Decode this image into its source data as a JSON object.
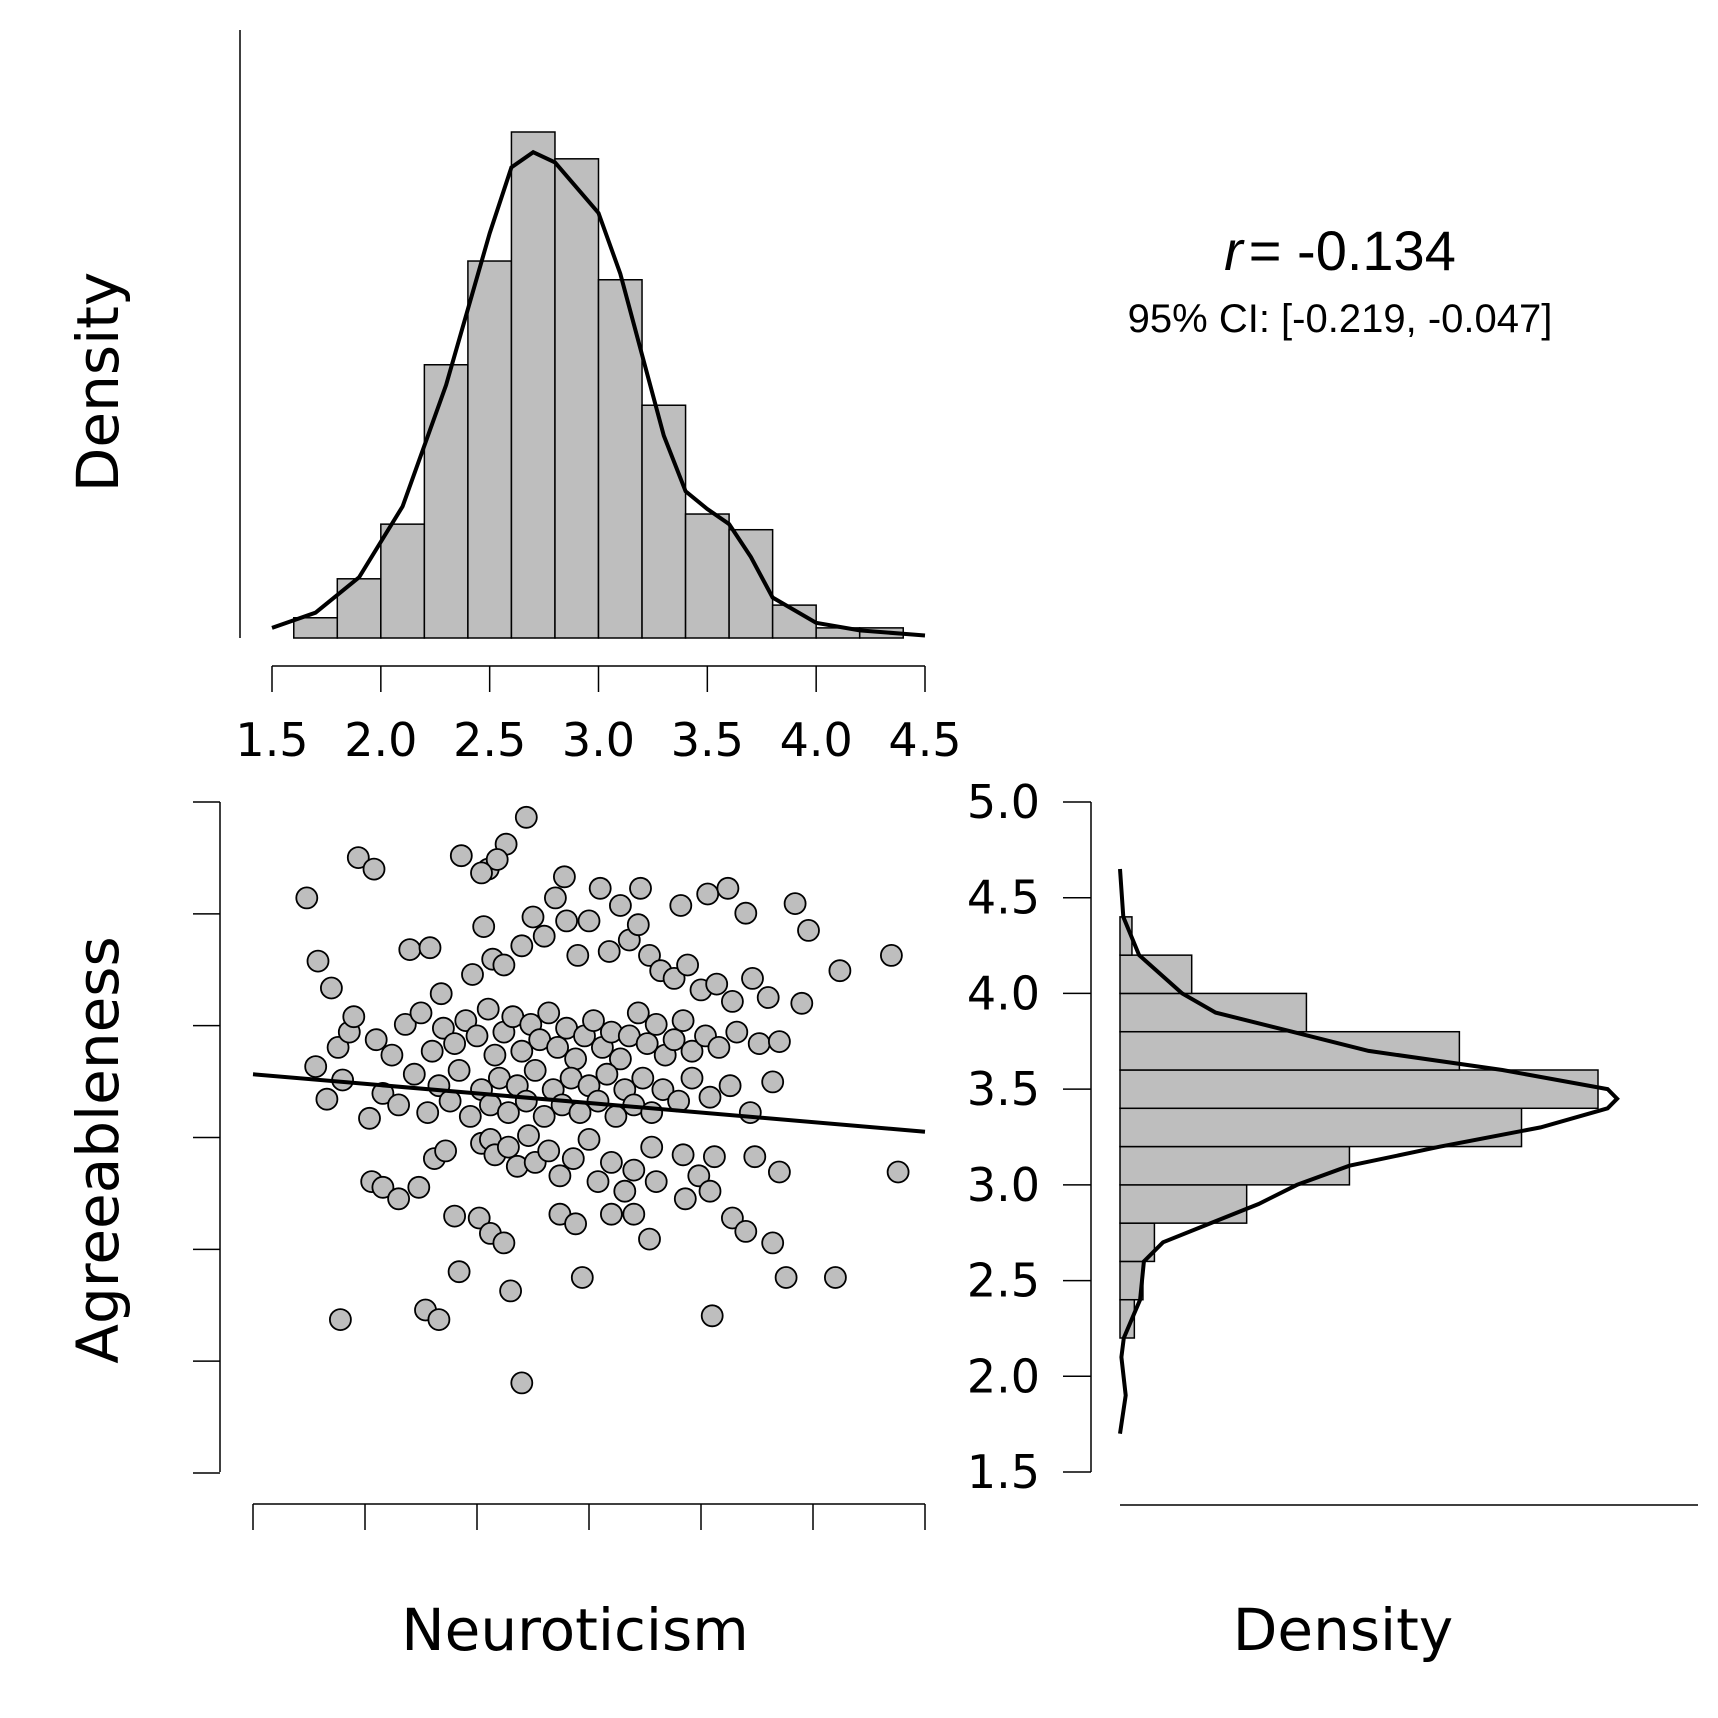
{
  "stat": {
    "r_symbol": "r",
    "r_value": "= -0.134",
    "ci_text": "95% CI: [-0.219, -0.047]"
  },
  "axes": {
    "top_ylabel": "Density",
    "scatter_ylabel": "Agreeableness",
    "scatter_xlabel": "Neuroticism",
    "right_xlabel": "Density"
  },
  "chart_data": [
    {
      "type": "bar",
      "panel": "top-histogram",
      "xlabel": "",
      "ylabel": "Density",
      "xlim": [
        1.5,
        4.5
      ],
      "xticks": [
        "1.5",
        "2.0",
        "2.5",
        "3.0",
        "3.5",
        "4.0",
        "4.5"
      ],
      "bin_edges": [
        1.6,
        1.8,
        2.0,
        2.2,
        2.4,
        2.6,
        2.8,
        3.0,
        3.2,
        3.4,
        3.6,
        3.8,
        4.0,
        4.2,
        4.4
      ],
      "values": [
        0.04,
        0.117,
        0.225,
        0.54,
        0.745,
        1.0,
        0.947,
        0.708,
        0.46,
        0.245,
        0.214,
        0.065,
        0.02,
        0.02
      ],
      "density_curve": [
        [
          1.5,
          0.02
        ],
        [
          1.7,
          0.05
        ],
        [
          1.9,
          0.12
        ],
        [
          2.1,
          0.26
        ],
        [
          2.3,
          0.5
        ],
        [
          2.5,
          0.8
        ],
        [
          2.6,
          0.93
        ],
        [
          2.7,
          0.96
        ],
        [
          2.8,
          0.94
        ],
        [
          3.0,
          0.84
        ],
        [
          3.1,
          0.72
        ],
        [
          3.2,
          0.56
        ],
        [
          3.3,
          0.4
        ],
        [
          3.4,
          0.29
        ],
        [
          3.5,
          0.255
        ],
        [
          3.6,
          0.225
        ],
        [
          3.7,
          0.16
        ],
        [
          3.8,
          0.08
        ],
        [
          4.0,
          0.03
        ],
        [
          4.2,
          0.015
        ],
        [
          4.5,
          0.005
        ]
      ]
    },
    {
      "type": "scatter",
      "panel": "scatter",
      "xlabel": "Neuroticism",
      "ylabel": "Agreeableness",
      "xlim": [
        1.5,
        4.5
      ],
      "ylim": [
        1.5,
        5.0
      ],
      "fit_line": [
        [
          1.5,
          3.58
        ],
        [
          4.5,
          3.28
        ]
      ],
      "points": [
        [
          2.72,
          4.92
        ],
        [
          2.63,
          4.78
        ],
        [
          2.55,
          4.65
        ],
        [
          2.43,
          4.72
        ],
        [
          2.59,
          4.7
        ],
        [
          2.89,
          4.61
        ],
        [
          1.97,
          4.71
        ],
        [
          2.04,
          4.65
        ],
        [
          2.52,
          4.63
        ],
        [
          3.23,
          4.55
        ],
        [
          3.41,
          4.46
        ],
        [
          3.53,
          4.52
        ],
        [
          3.62,
          4.55
        ],
        [
          3.7,
          4.42
        ],
        [
          3.92,
          4.47
        ],
        [
          1.74,
          4.5
        ],
        [
          3.98,
          4.33
        ],
        [
          1.79,
          4.17
        ],
        [
          1.85,
          4.03
        ],
        [
          2.2,
          4.23
        ],
        [
          2.29,
          4.24
        ],
        [
          2.34,
          4.0
        ],
        [
          2.48,
          4.1
        ],
        [
          2.53,
          4.35
        ],
        [
          2.57,
          4.18
        ],
        [
          2.62,
          4.15
        ],
        [
          2.7,
          4.25
        ],
        [
          2.75,
          4.4
        ],
        [
          2.8,
          4.3
        ],
        [
          2.85,
          4.5
        ],
        [
          2.9,
          4.38
        ],
        [
          2.95,
          4.2
        ],
        [
          3.0,
          4.38
        ],
        [
          3.05,
          4.55
        ],
        [
          3.09,
          4.22
        ],
        [
          3.14,
          4.46
        ],
        [
          3.18,
          4.28
        ],
        [
          3.22,
          4.36
        ],
        [
          3.27,
          4.2
        ],
        [
          3.32,
          4.12
        ],
        [
          3.38,
          4.08
        ],
        [
          3.44,
          4.15
        ],
        [
          3.5,
          4.02
        ],
        [
          3.57,
          4.05
        ],
        [
          3.64,
          3.96
        ],
        [
          3.73,
          4.08
        ],
        [
          3.8,
          3.98
        ],
        [
          3.95,
          3.95
        ],
        [
          4.12,
          4.12
        ],
        [
          4.35,
          4.2
        ],
        [
          1.88,
          3.72
        ],
        [
          1.93,
          3.8
        ],
        [
          1.95,
          3.88
        ],
        [
          2.05,
          3.76
        ],
        [
          2.12,
          3.68
        ],
        [
          2.18,
          3.84
        ],
        [
          2.25,
          3.9
        ],
        [
          2.3,
          3.7
        ],
        [
          2.35,
          3.82
        ],
        [
          2.4,
          3.74
        ],
        [
          2.45,
          3.86
        ],
        [
          2.5,
          3.78
        ],
        [
          2.55,
          3.92
        ],
        [
          2.58,
          3.68
        ],
        [
          2.62,
          3.8
        ],
        [
          2.66,
          3.88
        ],
        [
          2.7,
          3.7
        ],
        [
          2.74,
          3.84
        ],
        [
          2.78,
          3.76
        ],
        [
          2.82,
          3.9
        ],
        [
          2.86,
          3.72
        ],
        [
          2.9,
          3.82
        ],
        [
          2.94,
          3.66
        ],
        [
          2.98,
          3.78
        ],
        [
          3.02,
          3.86
        ],
        [
          3.06,
          3.72
        ],
        [
          3.1,
          3.8
        ],
        [
          3.14,
          3.66
        ],
        [
          3.18,
          3.78
        ],
        [
          3.22,
          3.9
        ],
        [
          3.26,
          3.74
        ],
        [
          3.3,
          3.84
        ],
        [
          3.34,
          3.68
        ],
        [
          3.38,
          3.76
        ],
        [
          3.42,
          3.86
        ],
        [
          3.46,
          3.7
        ],
        [
          3.52,
          3.78
        ],
        [
          3.58,
          3.72
        ],
        [
          3.66,
          3.8
        ],
        [
          3.76,
          3.74
        ],
        [
          3.85,
          3.75
        ],
        [
          1.78,
          3.62
        ],
        [
          1.83,
          3.45
        ],
        [
          1.9,
          3.55
        ],
        [
          2.02,
          3.35
        ],
        [
          2.08,
          3.48
        ],
        [
          2.15,
          3.42
        ],
        [
          2.22,
          3.58
        ],
        [
          2.28,
          3.38
        ],
        [
          2.33,
          3.52
        ],
        [
          2.38,
          3.44
        ],
        [
          2.42,
          3.6
        ],
        [
          2.47,
          3.36
        ],
        [
          2.52,
          3.5
        ],
        [
          2.56,
          3.42
        ],
        [
          2.6,
          3.56
        ],
        [
          2.64,
          3.38
        ],
        [
          2.68,
          3.52
        ],
        [
          2.72,
          3.44
        ],
        [
          2.76,
          3.6
        ],
        [
          2.8,
          3.36
        ],
        [
          2.84,
          3.5
        ],
        [
          2.88,
          3.42
        ],
        [
          2.92,
          3.56
        ],
        [
          2.96,
          3.38
        ],
        [
          3.0,
          3.52
        ],
        [
          3.04,
          3.44
        ],
        [
          3.08,
          3.58
        ],
        [
          3.12,
          3.36
        ],
        [
          3.16,
          3.5
        ],
        [
          3.2,
          3.42
        ],
        [
          3.24,
          3.56
        ],
        [
          3.28,
          3.38
        ],
        [
          3.33,
          3.5
        ],
        [
          3.4,
          3.44
        ],
        [
          3.46,
          3.56
        ],
        [
          3.54,
          3.46
        ],
        [
          3.63,
          3.52
        ],
        [
          3.72,
          3.38
        ],
        [
          3.82,
          3.54
        ],
        [
          2.31,
          3.14
        ],
        [
          2.36,
          3.18
        ],
        [
          2.52,
          3.22
        ],
        [
          2.56,
          3.24
        ],
        [
          2.58,
          3.16
        ],
        [
          2.64,
          3.2
        ],
        [
          2.68,
          3.1
        ],
        [
          2.73,
          3.26
        ],
        [
          2.76,
          3.12
        ],
        [
          2.82,
          3.18
        ],
        [
          2.87,
          3.05
        ],
        [
          2.93,
          3.14
        ],
        [
          3.0,
          3.24
        ],
        [
          3.04,
          3.02
        ],
        [
          3.1,
          3.12
        ],
        [
          3.16,
          2.97
        ],
        [
          3.2,
          3.08
        ],
        [
          3.28,
          3.2
        ],
        [
          3.3,
          3.02
        ],
        [
          3.42,
          3.16
        ],
        [
          3.49,
          3.05
        ],
        [
          3.56,
          3.15
        ],
        [
          3.74,
          3.15
        ],
        [
          3.85,
          3.07
        ],
        [
          4.38,
          3.07
        ],
        [
          3.43,
          2.93
        ],
        [
          3.54,
          2.97
        ],
        [
          2.03,
          3.02
        ],
        [
          2.08,
          2.99
        ],
        [
          2.15,
          2.93
        ],
        [
          2.24,
          2.99
        ],
        [
          2.4,
          2.84
        ],
        [
          2.51,
          2.83
        ],
        [
          2.56,
          2.75
        ],
        [
          2.62,
          2.7
        ],
        [
          2.87,
          2.85
        ],
        [
          2.94,
          2.8
        ],
        [
          3.1,
          2.85
        ],
        [
          3.2,
          2.85
        ],
        [
          3.27,
          2.72
        ],
        [
          3.64,
          2.83
        ],
        [
          3.7,
          2.76
        ],
        [
          3.82,
          2.7
        ],
        [
          3.88,
          2.52
        ],
        [
          4.1,
          2.52
        ],
        [
          2.42,
          2.55
        ],
        [
          2.65,
          2.45
        ],
        [
          2.97,
          2.52
        ],
        [
          1.89,
          2.3
        ],
        [
          2.27,
          2.35
        ],
        [
          2.33,
          2.3
        ],
        [
          3.55,
          2.32
        ],
        [
          2.7,
          1.97
        ]
      ]
    },
    {
      "type": "bar",
      "panel": "right-histogram",
      "orientation": "horizontal",
      "xlabel": "Density",
      "ylabel": "Agreeableness",
      "ylim": [
        1.5,
        5.0
      ],
      "yticks": [
        "1.5",
        "2.0",
        "2.5",
        "3.0",
        "3.5",
        "4.0",
        "4.5",
        "5.0"
      ],
      "bin_edges": [
        2.2,
        2.4,
        2.6,
        2.8,
        3.0,
        3.2,
        3.4,
        3.6,
        3.8,
        4.0,
        4.2,
        4.4
      ],
      "values": [
        0.03,
        0.048,
        0.072,
        0.265,
        0.48,
        0.84,
        1.0,
        0.71,
        0.39,
        0.15,
        0.025
      ],
      "density_curve": [
        [
          1.7,
          0.0
        ],
        [
          1.9,
          0.012
        ],
        [
          2.1,
          0.003
        ],
        [
          2.2,
          0.008
        ],
        [
          2.4,
          0.042
        ],
        [
          2.6,
          0.05
        ],
        [
          2.7,
          0.09
        ],
        [
          2.8,
          0.19
        ],
        [
          2.9,
          0.29
        ],
        [
          3.0,
          0.37
        ],
        [
          3.1,
          0.48
        ],
        [
          3.2,
          0.67
        ],
        [
          3.3,
          0.88
        ],
        [
          3.4,
          1.02
        ],
        [
          3.45,
          1.04
        ],
        [
          3.5,
          1.02
        ],
        [
          3.6,
          0.8
        ],
        [
          3.7,
          0.52
        ],
        [
          3.8,
          0.36
        ],
        [
          3.9,
          0.2
        ],
        [
          4.0,
          0.13
        ],
        [
          4.2,
          0.04
        ],
        [
          4.4,
          0.007
        ],
        [
          4.65,
          0.0
        ]
      ]
    }
  ]
}
